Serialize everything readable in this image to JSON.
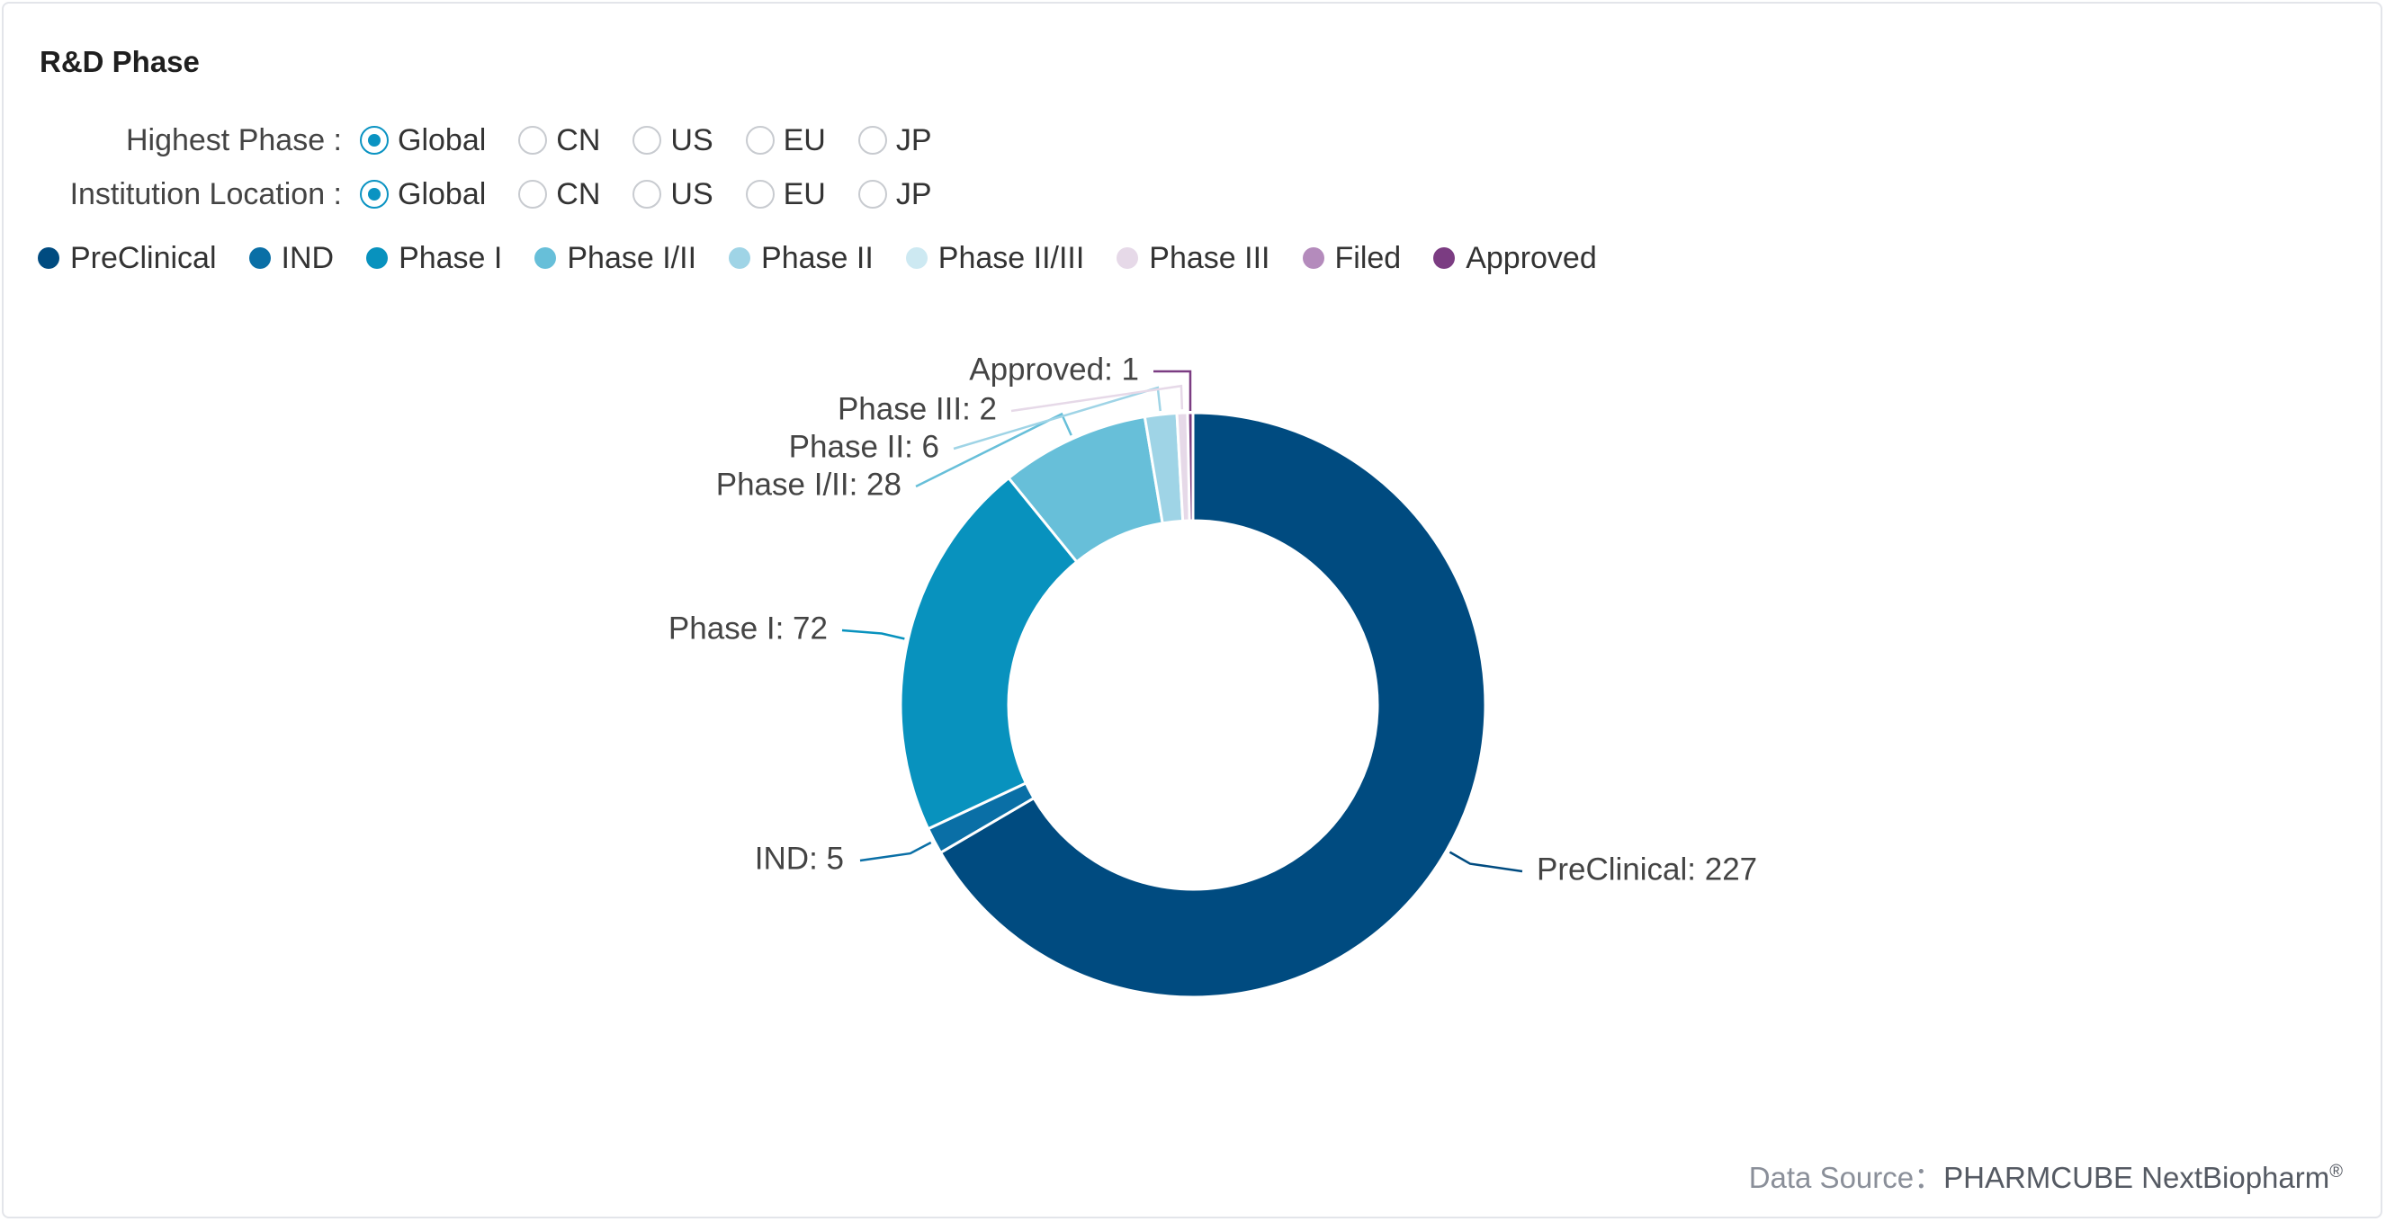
{
  "title": "R&D Phase",
  "filters": [
    {
      "label": "Highest Phase :",
      "options": [
        "Global",
        "CN",
        "US",
        "EU",
        "JP"
      ],
      "selected": "Global"
    },
    {
      "label": "Institution Location :",
      "options": [
        "Global",
        "CN",
        "US",
        "EU",
        "JP"
      ],
      "selected": "Global"
    }
  ],
  "colors": {
    "PreClinical": "#004b80",
    "IND": "#0a6fa6",
    "Phase I": "#0892be",
    "Phase I/II": "#67bfd9",
    "Phase II": "#9fd4e6",
    "Phase II/III": "#cde9f2",
    "Phase III": "#e6d9e8",
    "Filed": "#b48bbc",
    "Approved": "#7b3c82"
  },
  "chart_data": {
    "type": "pie",
    "variant": "donut",
    "title": "",
    "categories": [
      "PreClinical",
      "IND",
      "Phase I",
      "Phase I/II",
      "Phase II",
      "Phase II/III",
      "Phase III",
      "Filed",
      "Approved"
    ],
    "values": [
      227,
      5,
      72,
      28,
      6,
      0,
      2,
      0,
      1
    ],
    "data_labels": [
      {
        "category": "PreClinical",
        "text": "PreClinical: 227"
      },
      {
        "category": "IND",
        "text": "IND: 5"
      },
      {
        "category": "Phase I",
        "text": "Phase I: 72"
      },
      {
        "category": "Phase I/II",
        "text": "Phase I/II: 28"
      },
      {
        "category": "Phase II",
        "text": "Phase II: 6"
      },
      {
        "category": "Phase III",
        "text": "Phase III: 2"
      },
      {
        "category": "Approved",
        "text": "Approved: 1"
      }
    ],
    "legend_position": "top-left"
  },
  "footer": {
    "source_label": "Data Source：",
    "source_value": "PHARMCUBE NextBiopharm",
    "source_mark": "®"
  }
}
